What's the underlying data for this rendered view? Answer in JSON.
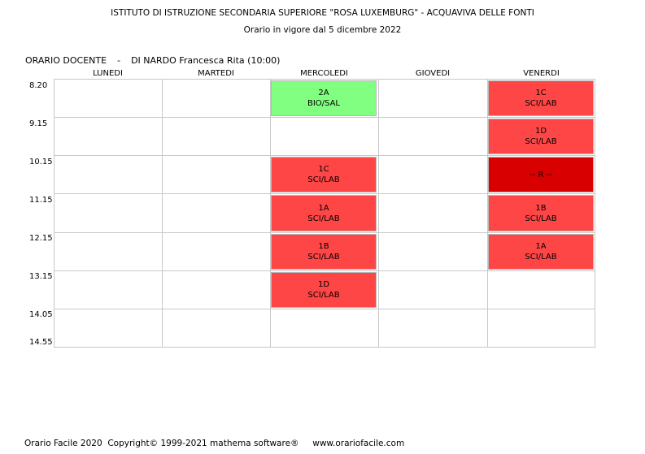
{
  "header": {
    "school": "ISTITUTO DI ISTRUZIONE SECONDARIA SUPERIORE \"ROSA LUXEMBURG\" - ACQUAVIVA DELLE FONTI",
    "validity": "Orario in vigore dal 5 dicembre 2022"
  },
  "teacher": {
    "label": "ORARIO DOCENTE",
    "separator": "-",
    "name": "DI NARDO Francesca Rita",
    "hours": "(10:00)"
  },
  "days": [
    "LUNEDI",
    "MARTEDI",
    "MERCOLEDI",
    "GIOVEDI",
    "VENERDI"
  ],
  "times": [
    "8.20",
    "9.15",
    "10.15",
    "11.15",
    "12.15",
    "13.15",
    "14.05",
    "14.55"
  ],
  "colors": {
    "lesson": "#ff4646",
    "lab_green": "#80ff80",
    "reserve": "#d80000",
    "grid": "#c8c8c8"
  },
  "lessons": [
    {
      "day": 2,
      "slot": 0,
      "class": "2A",
      "subject": "BIO/SAL",
      "color": "#80ff80"
    },
    {
      "day": 2,
      "slot": 2,
      "class": "1C",
      "subject": "SCI/LAB",
      "color": "#ff4646"
    },
    {
      "day": 2,
      "slot": 3,
      "class": "1A",
      "subject": "SCI/LAB",
      "color": "#ff4646"
    },
    {
      "day": 2,
      "slot": 4,
      "class": "1B",
      "subject": "SCI/LAB",
      "color": "#ff4646"
    },
    {
      "day": 2,
      "slot": 5,
      "class": "1D",
      "subject": "SCI/LAB",
      "color": "#ff4646"
    },
    {
      "day": 4,
      "slot": 0,
      "class": "1C",
      "subject": "SCI/LAB",
      "color": "#ff4646"
    },
    {
      "day": 4,
      "slot": 1,
      "class": "1D",
      "subject": "SCI/LAB",
      "color": "#ff4646"
    },
    {
      "day": 4,
      "slot": 2,
      "class": "-- R --",
      "subject": "",
      "color": "#d80000"
    },
    {
      "day": 4,
      "slot": 3,
      "class": "1B",
      "subject": "SCI/LAB",
      "color": "#ff4646"
    },
    {
      "day": 4,
      "slot": 4,
      "class": "1A",
      "subject": "SCI/LAB",
      "color": "#ff4646"
    }
  ],
  "footer": {
    "product": "Orario Facile 2020",
    "copyright": "Copyright© 1999-2021 mathema software®",
    "website": "www.orariofacile.com"
  }
}
